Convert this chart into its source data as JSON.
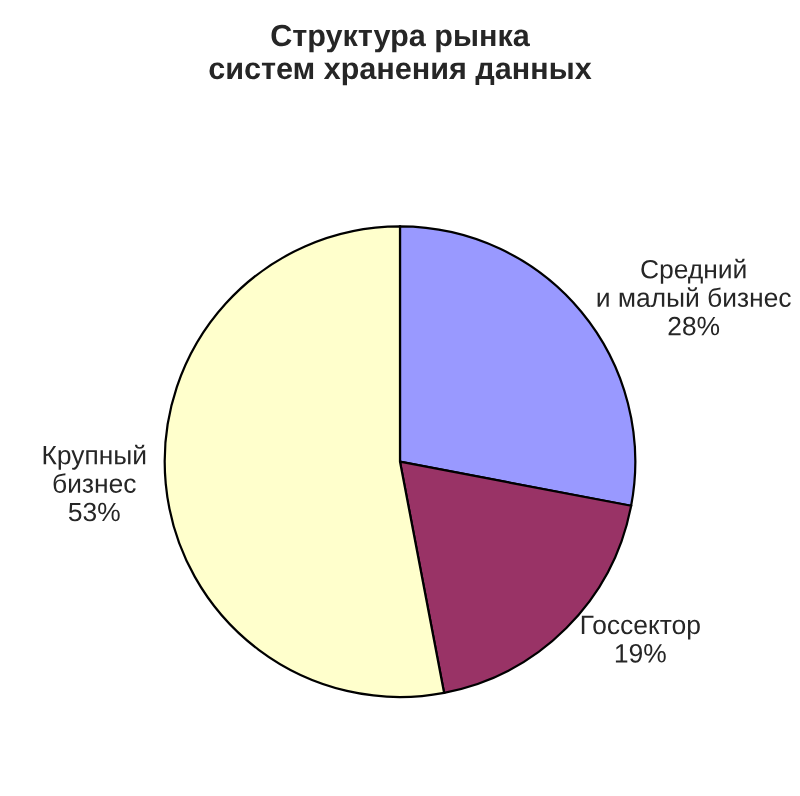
{
  "chart_data": {
    "type": "pie",
    "title": "Структура рынка\nсистем хранения данных",
    "categories": [
      "Средний\nи малый бизнес",
      "Госсектор",
      "Крупный\nбизнес"
    ],
    "values": [
      28,
      19,
      53
    ],
    "colors": [
      "#9999ff",
      "#993366",
      "#ffffcc"
    ],
    "value_labels": [
      "28%",
      "19%",
      "53%"
    ]
  }
}
